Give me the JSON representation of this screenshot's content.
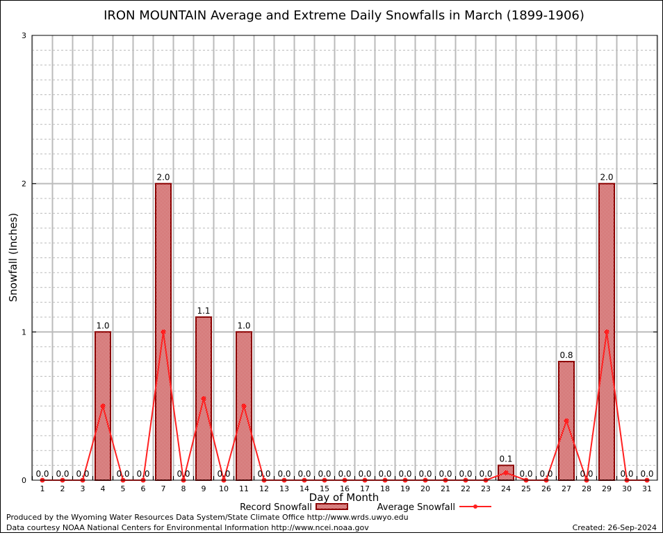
{
  "chart_data": {
    "type": "bar",
    "title": "IRON MOUNTAIN Average and Extreme Daily Snowfalls in March (1899-1906)",
    "xlabel": "Day of Month",
    "ylabel": "Snowfall (Inches)",
    "ylim": [
      0,
      3
    ],
    "yticks": [
      "0",
      "1",
      "2",
      "3"
    ],
    "categories": [
      "1",
      "2",
      "3",
      "4",
      "5",
      "6",
      "7",
      "8",
      "9",
      "10",
      "11",
      "12",
      "13",
      "14",
      "15",
      "16",
      "17",
      "18",
      "19",
      "20",
      "21",
      "22",
      "23",
      "24",
      "25",
      "26",
      "27",
      "28",
      "29",
      "30",
      "31"
    ],
    "series": [
      {
        "name": "Record Snowfall",
        "type": "bar",
        "values": [
          0,
          0,
          0,
          1.0,
          0,
          0,
          2.0,
          0,
          1.1,
          0,
          1.0,
          0,
          0,
          0,
          0,
          0,
          0,
          0,
          0,
          0,
          0,
          0,
          0,
          0.1,
          0,
          0,
          0.8,
          0,
          2.0,
          0,
          0
        ]
      },
      {
        "name": "Average Snowfall",
        "type": "line",
        "values": [
          0,
          0,
          0,
          0.5,
          0,
          0,
          1.0,
          0,
          0.55,
          0,
          0.5,
          0,
          0,
          0,
          0,
          0,
          0,
          0,
          0,
          0,
          0,
          0,
          0,
          0.05,
          0,
          0,
          0.4,
          0,
          1.0,
          0,
          0
        ]
      }
    ],
    "data_labels": [
      "0.0",
      "0.0",
      "0.0",
      "1.0",
      "0.0",
      "0.0",
      "2.0",
      "0.0",
      "1.1",
      "0.0",
      "1.0",
      "0.0",
      "0.0",
      "0.0",
      "0.0",
      "0.0",
      "0.0",
      "0.0",
      "0.0",
      "0.0",
      "0.0",
      "0.0",
      "0.0",
      "0.1",
      "0.0",
      "0.0",
      "0.8",
      "0.0",
      "2.0",
      "0.0",
      "0.0"
    ],
    "legend_position": "bottom",
    "grid": true,
    "colors": {
      "bar_edge": "#8b0000",
      "bar_fill": "#c00000",
      "line": "#ff2020"
    }
  },
  "footer": {
    "produced": "Produced by the Wyoming Water Resources Data System/State Climate Office http://www.wrds.uwyo.edu",
    "courtesy": "Data courtesy NOAA National Centers for Environmental Information http://www.ncei.noaa.gov",
    "created": "Created: 26-Sep-2024"
  }
}
